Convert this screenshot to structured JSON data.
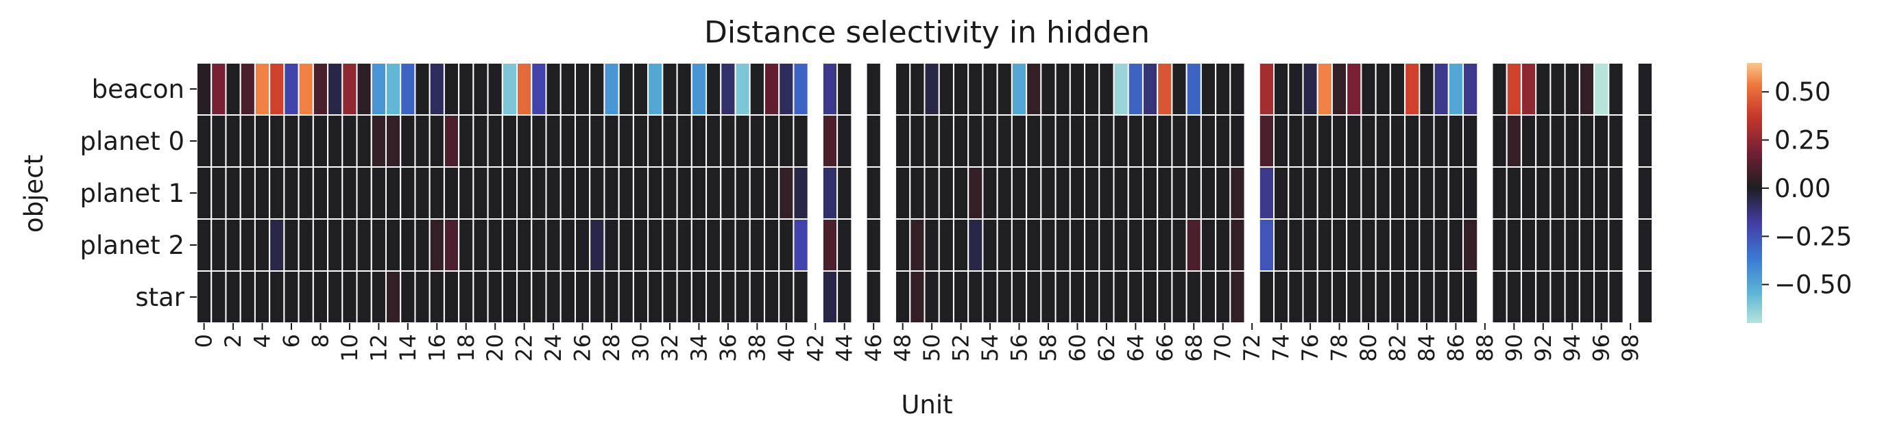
{
  "chart_data": {
    "type": "heatmap",
    "title": "Distance selectivity in hidden",
    "xlabel": "Unit",
    "ylabel": "object",
    "rows": [
      "beacon",
      "planet 0",
      "planet 1",
      "planet 2",
      "star"
    ],
    "columns": [
      0,
      1,
      2,
      3,
      4,
      5,
      6,
      7,
      8,
      9,
      10,
      11,
      12,
      13,
      14,
      15,
      16,
      17,
      18,
      19,
      20,
      21,
      22,
      23,
      24,
      25,
      26,
      27,
      28,
      29,
      30,
      31,
      32,
      33,
      34,
      35,
      36,
      37,
      38,
      39,
      40,
      41,
      42,
      43,
      44,
      45,
      46,
      47,
      48,
      49,
      50,
      51,
      52,
      53,
      54,
      55,
      56,
      57,
      58,
      59,
      60,
      61,
      62,
      63,
      64,
      65,
      66,
      67,
      68,
      69,
      70,
      71,
      72,
      73,
      74,
      75,
      76,
      77,
      78,
      79,
      80,
      81,
      82,
      83,
      84,
      85,
      86,
      87,
      88,
      89,
      90,
      91,
      92,
      93,
      94,
      95,
      96,
      97,
      98,
      99
    ],
    "xtick_labels": [
      "0",
      "2",
      "4",
      "6",
      "8",
      "10",
      "12",
      "14",
      "16",
      "18",
      "20",
      "22",
      "24",
      "26",
      "28",
      "30",
      "32",
      "34",
      "36",
      "38",
      "40",
      "42",
      "44",
      "46",
      "48",
      "50",
      "52",
      "54",
      "56",
      "58",
      "60",
      "62",
      "64",
      "66",
      "68",
      "70",
      "72",
      "74",
      "76",
      "78",
      "80",
      "82",
      "84",
      "86",
      "88",
      "90",
      "92",
      "94",
      "96",
      "98"
    ],
    "values": [
      [
        0.02,
        0.2,
        0.0,
        0.1,
        0.55,
        0.4,
        -0.2,
        0.55,
        0.1,
        -0.05,
        0.25,
        0.03,
        -0.45,
        -0.55,
        -0.3,
        0.0,
        -0.08,
        0.0,
        0.0,
        0.0,
        0.0,
        -0.6,
        0.5,
        -0.2,
        0.0,
        0.0,
        0.0,
        0.0,
        -0.45,
        0.0,
        0.0,
        -0.5,
        0.0,
        0.0,
        -0.45,
        0.0,
        -0.1,
        -0.6,
        0.0,
        0.15,
        -0.08,
        -0.3,
        null,
        -0.15,
        0.0,
        null,
        0.0,
        null,
        0.0,
        0.0,
        -0.05,
        0.0,
        0.0,
        0.0,
        0.0,
        0.0,
        -0.5,
        0.05,
        0.0,
        0.0,
        0.0,
        0.0,
        0.0,
        -0.65,
        -0.3,
        -0.12,
        0.45,
        0.0,
        -0.3,
        0.0,
        0.0,
        0.0,
        null,
        0.3,
        0.0,
        0.0,
        -0.05,
        0.55,
        0.05,
        0.2,
        0.0,
        0.0,
        0.0,
        0.4,
        0.0,
        -0.15,
        -0.5,
        -0.15,
        null,
        0.0,
        0.4,
        0.25,
        0.0,
        0.0,
        0.0,
        0.05,
        -0.7,
        0.0,
        null,
        0.0
      ],
      [
        0.0,
        0.0,
        0.0,
        0.0,
        0.0,
        0.0,
        0.0,
        0.0,
        0.0,
        0.0,
        0.0,
        0.0,
        0.05,
        0.05,
        0.0,
        0.0,
        0.0,
        0.1,
        0.0,
        0.0,
        0.0,
        0.0,
        0.0,
        0.0,
        0.0,
        0.0,
        0.0,
        0.0,
        0.0,
        0.0,
        0.0,
        0.0,
        0.0,
        0.0,
        0.0,
        0.0,
        0.0,
        0.0,
        0.0,
        0.0,
        0.0,
        0.0,
        null,
        0.1,
        0.0,
        null,
        0.0,
        null,
        0.0,
        0.0,
        0.0,
        0.0,
        0.0,
        0.0,
        0.0,
        0.0,
        0.0,
        0.0,
        0.0,
        0.0,
        0.0,
        0.0,
        0.0,
        0.0,
        0.0,
        0.0,
        0.0,
        0.0,
        0.0,
        0.0,
        0.0,
        0.0,
        null,
        0.1,
        0.0,
        0.0,
        0.0,
        0.0,
        0.0,
        0.0,
        0.0,
        0.0,
        0.0,
        0.0,
        0.0,
        0.0,
        0.0,
        0.0,
        null,
        0.0,
        0.05,
        0.0,
        0.0,
        0.0,
        0.0,
        0.0,
        0.0,
        0.0,
        null,
        0.0
      ],
      [
        0.0,
        0.0,
        0.0,
        0.0,
        0.0,
        0.0,
        0.0,
        0.0,
        0.0,
        0.0,
        0.0,
        0.0,
        0.0,
        0.0,
        0.0,
        0.0,
        0.0,
        0.0,
        0.0,
        0.0,
        0.0,
        0.0,
        0.0,
        0.0,
        0.0,
        0.0,
        0.0,
        0.0,
        0.0,
        0.0,
        0.0,
        0.0,
        0.0,
        0.0,
        0.0,
        0.0,
        0.0,
        0.0,
        0.0,
        0.0,
        0.05,
        -0.05,
        null,
        -0.1,
        0.0,
        null,
        0.0,
        null,
        0.0,
        0.0,
        0.0,
        0.0,
        0.0,
        0.05,
        0.0,
        0.0,
        0.0,
        0.0,
        0.0,
        0.0,
        0.0,
        0.0,
        0.0,
        0.0,
        0.0,
        0.0,
        0.0,
        0.0,
        0.0,
        0.0,
        0.0,
        0.05,
        null,
        -0.15,
        0.0,
        0.0,
        0.0,
        0.0,
        0.0,
        0.0,
        0.0,
        0.0,
        0.0,
        0.0,
        0.0,
        0.0,
        0.0,
        0.0,
        null,
        0.0,
        0.0,
        0.0,
        0.0,
        0.0,
        0.0,
        0.0,
        0.0,
        0.0,
        null,
        0.0
      ],
      [
        0.0,
        0.0,
        0.0,
        0.0,
        0.0,
        -0.05,
        0.0,
        0.0,
        0.0,
        0.0,
        0.0,
        0.0,
        0.0,
        0.0,
        0.0,
        0.0,
        0.05,
        0.1,
        0.0,
        0.0,
        0.0,
        0.0,
        0.0,
        0.0,
        0.0,
        0.0,
        0.0,
        -0.05,
        0.0,
        0.0,
        0.0,
        0.0,
        0.0,
        0.0,
        0.0,
        0.0,
        0.0,
        0.0,
        0.0,
        0.0,
        0.0,
        -0.2,
        null,
        0.1,
        0.0,
        null,
        0.0,
        null,
        0.0,
        0.05,
        0.0,
        0.0,
        0.0,
        -0.05,
        0.0,
        0.0,
        0.0,
        0.0,
        0.0,
        0.0,
        0.0,
        0.0,
        0.0,
        0.0,
        0.0,
        0.0,
        0.0,
        0.0,
        0.1,
        0.0,
        0.0,
        0.05,
        null,
        -0.25,
        0.0,
        0.0,
        0.0,
        0.0,
        0.0,
        0.0,
        0.0,
        0.0,
        0.0,
        0.0,
        0.0,
        0.0,
        0.0,
        0.05,
        null,
        0.0,
        0.0,
        0.0,
        0.0,
        0.0,
        0.0,
        0.0,
        0.0,
        0.0,
        null,
        0.0
      ],
      [
        0.0,
        0.0,
        0.0,
        0.0,
        0.0,
        0.0,
        0.0,
        0.0,
        0.0,
        0.0,
        0.0,
        0.0,
        0.0,
        0.05,
        0.0,
        0.0,
        0.0,
        0.0,
        0.0,
        0.0,
        0.0,
        0.0,
        0.0,
        0.0,
        0.0,
        0.0,
        0.0,
        0.0,
        0.0,
        0.0,
        0.0,
        0.0,
        0.0,
        0.0,
        0.0,
        0.0,
        0.0,
        0.0,
        0.0,
        0.0,
        0.0,
        0.0,
        null,
        -0.05,
        0.0,
        null,
        0.0,
        null,
        0.0,
        0.05,
        0.0,
        0.0,
        0.0,
        0.0,
        0.0,
        0.0,
        0.0,
        0.0,
        0.0,
        0.0,
        0.0,
        0.0,
        0.0,
        0.0,
        0.0,
        0.0,
        0.0,
        0.0,
        0.0,
        0.0,
        0.0,
        0.05,
        null,
        0.0,
        0.0,
        0.0,
        0.0,
        0.0,
        0.0,
        0.0,
        0.0,
        0.0,
        0.0,
        0.0,
        0.0,
        0.0,
        0.0,
        0.0,
        null,
        0.0,
        0.0,
        0.0,
        0.0,
        0.0,
        0.0,
        0.0,
        0.0,
        0.0,
        null,
        0.0
      ]
    ],
    "colormap": "icefire",
    "vmin": -0.7,
    "vmax": 0.65,
    "colorbar_ticks": [
      0.5,
      0.25,
      0.0,
      -0.25,
      -0.5
    ],
    "colorbar_tick_labels": [
      "0.50",
      "0.25",
      "0.00",
      "−0.25",
      "−0.50"
    ],
    "missing_color": "#ffffff",
    "grid_color": "#ffffff"
  }
}
